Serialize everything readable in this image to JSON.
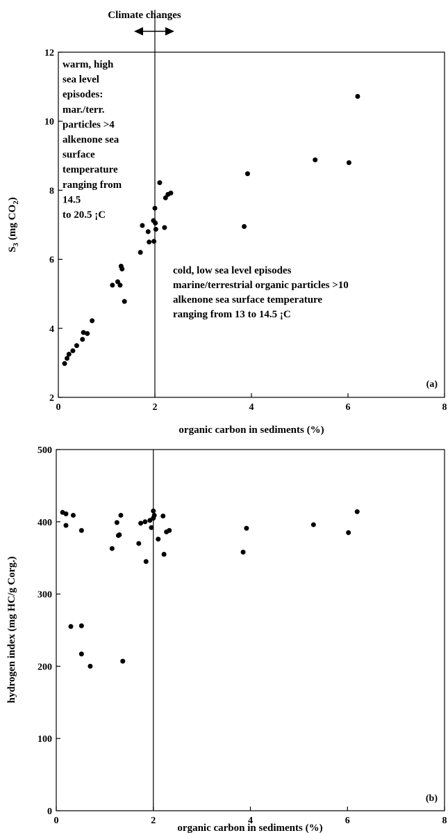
{
  "top_annotation": "Climate changes",
  "chart_data": [
    {
      "type": "scatter",
      "panel_label": "(a)",
      "xlabel": "organic carbon in sediments (%)",
      "ylabel_main": "S",
      "ylabel_sub": "3",
      "ylabel_rest": " (mg CO",
      "ylabel_sub2": "2",
      "ylabel_end": ")",
      "xlim": [
        0,
        8
      ],
      "ylim": [
        2,
        12
      ],
      "xticks": [
        0,
        2,
        4,
        6,
        8
      ],
      "yticks": [
        2,
        4,
        6,
        8,
        10,
        12
      ],
      "grid": false,
      "vline_x": 2,
      "annotations": [
        {
          "lines": [
            "warm, high",
            "sea level",
            "episodes:",
            "mar./terr.",
            "particles >4",
            "alkenone sea",
            "surface",
            "temperature",
            "ranging from",
            "14.5",
            "to 20.5 ¡C"
          ]
        },
        {
          "lines": [
            "cold, low sea level episodes",
            "marine/terrestrial organic particles >10",
            "alkenone sea surface temperature",
            "ranging from 13 to 14.5 ¡C"
          ]
        }
      ],
      "points": [
        [
          0.13,
          2.98
        ],
        [
          0.18,
          3.13
        ],
        [
          0.22,
          3.25
        ],
        [
          0.3,
          3.35
        ],
        [
          0.38,
          3.5
        ],
        [
          0.5,
          3.68
        ],
        [
          0.52,
          3.88
        ],
        [
          0.6,
          3.85
        ],
        [
          0.7,
          4.22
        ],
        [
          1.12,
          5.25
        ],
        [
          1.23,
          5.35
        ],
        [
          1.28,
          5.25
        ],
        [
          1.3,
          5.8
        ],
        [
          1.32,
          5.72
        ],
        [
          1.37,
          4.78
        ],
        [
          1.7,
          6.2
        ],
        [
          1.74,
          6.98
        ],
        [
          1.86,
          6.8
        ],
        [
          1.88,
          6.5
        ],
        [
          1.97,
          7.12
        ],
        [
          1.98,
          6.52
        ],
        [
          2.0,
          7.48
        ],
        [
          2.01,
          7.05
        ],
        [
          2.02,
          6.87
        ],
        [
          2.1,
          8.22
        ],
        [
          2.2,
          6.92
        ],
        [
          2.22,
          7.78
        ],
        [
          2.27,
          7.88
        ],
        [
          2.33,
          7.92
        ],
        [
          3.85,
          6.95
        ],
        [
          3.92,
          8.48
        ],
        [
          5.32,
          8.88
        ],
        [
          6.02,
          8.8
        ],
        [
          6.2,
          10.72
        ]
      ]
    },
    {
      "type": "scatter",
      "panel_label": "(b)",
      "xlabel": "organic carbon in sediments (%)",
      "ylabel": "hydrogen index (mg HC/g Corg.)",
      "xlim": [
        0,
        8
      ],
      "ylim": [
        0,
        500
      ],
      "xticks": [
        0,
        2,
        4,
        6,
        8
      ],
      "yticks": [
        0,
        100,
        200,
        300,
        400,
        500
      ],
      "grid": false,
      "vline_x": 2,
      "points": [
        [
          0.13,
          413
        ],
        [
          0.2,
          411
        ],
        [
          0.2,
          395
        ],
        [
          0.35,
          409
        ],
        [
          0.52,
          388
        ],
        [
          0.3,
          255
        ],
        [
          0.52,
          256
        ],
        [
          0.52,
          217
        ],
        [
          0.7,
          200
        ],
        [
          1.15,
          363
        ],
        [
          1.25,
          399
        ],
        [
          1.28,
          381
        ],
        [
          1.3,
          382
        ],
        [
          1.33,
          409
        ],
        [
          1.37,
          207
        ],
        [
          1.7,
          370
        ],
        [
          1.74,
          398
        ],
        [
          1.83,
          400
        ],
        [
          1.85,
          345
        ],
        [
          1.93,
          402
        ],
        [
          1.96,
          392
        ],
        [
          2.0,
          415
        ],
        [
          2.0,
          405
        ],
        [
          2.02,
          409
        ],
        [
          2.1,
          376
        ],
        [
          2.2,
          408
        ],
        [
          2.22,
          355
        ],
        [
          2.27,
          386
        ],
        [
          2.33,
          388
        ],
        [
          3.85,
          358
        ],
        [
          3.92,
          391
        ],
        [
          5.3,
          396
        ],
        [
          6.02,
          385
        ],
        [
          6.2,
          414
        ]
      ]
    }
  ]
}
